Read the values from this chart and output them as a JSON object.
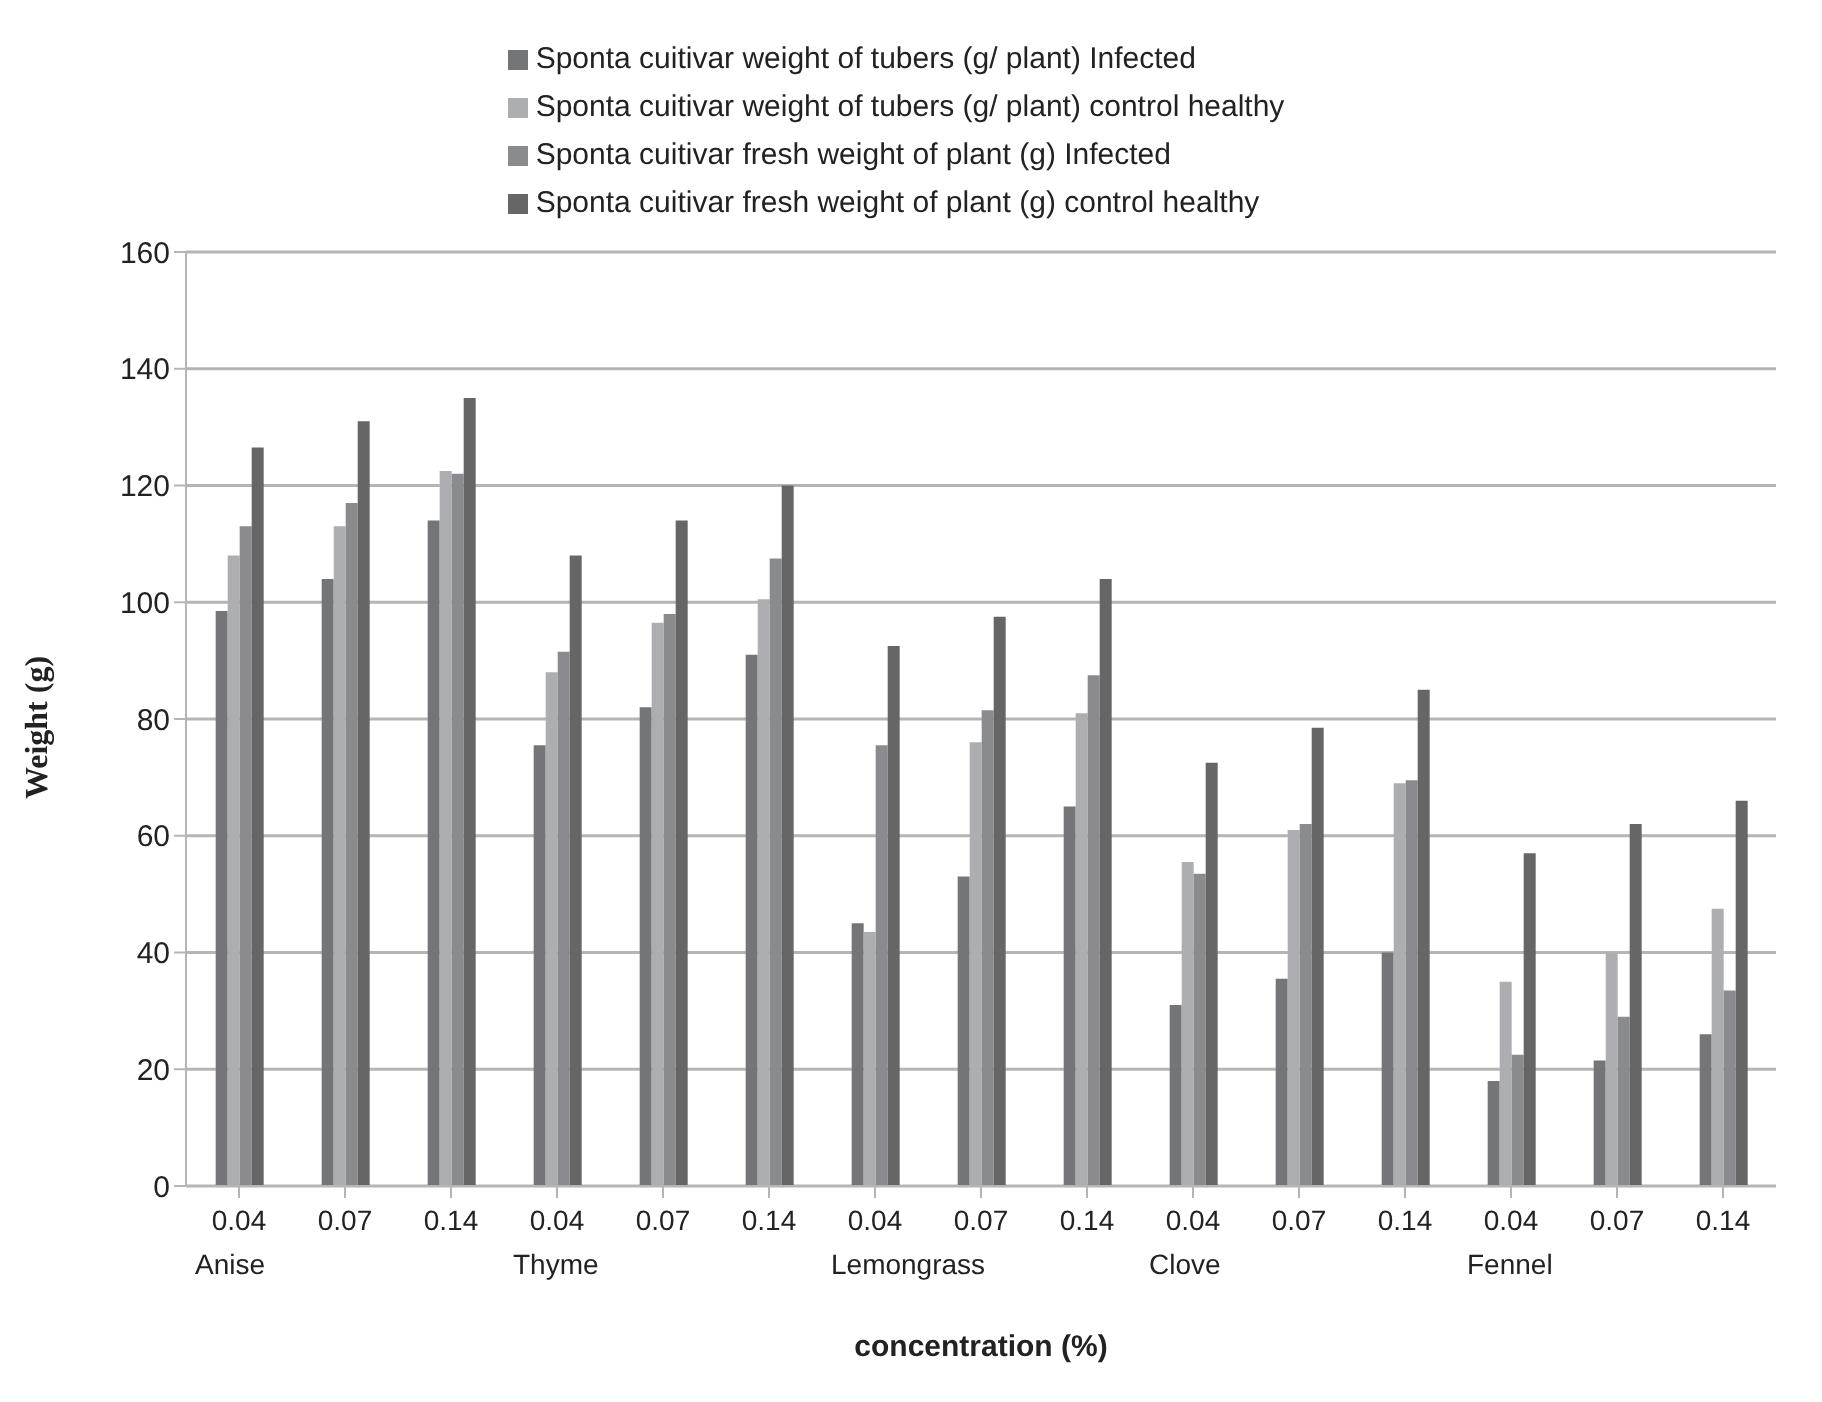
{
  "chart_data": {
    "type": "bar",
    "xlabel": "concentration (%)",
    "ylabel": "Weight (g)",
    "categories": [
      "0.04\nAnise",
      "0.07",
      "0.14",
      "0.04\nThyme",
      "0.07",
      "0.14",
      "0.04\nLemongrass",
      "0.07",
      "0.14",
      "0.04\nClove",
      "0.07",
      "0.14",
      "0.04\nFennel",
      "0.07",
      "0.14"
    ],
    "series": [
      {
        "name": "Sponta cuitivar weight of tubers (g/ plant) Infected",
        "color": "#747578",
        "values": [
          98.5,
          104,
          114,
          75.5,
          82,
          91,
          45,
          53,
          65,
          31,
          35.5,
          40,
          18,
          21.5,
          26
        ]
      },
      {
        "name": "Sponta cuitivar weight of tubers (g/ plant) control healthy",
        "color": "#adaeb1",
        "values": [
          108,
          113,
          122.5,
          88,
          96.5,
          100.5,
          43.5,
          76,
          81,
          55.5,
          61,
          69,
          35,
          40,
          47.5
        ]
      },
      {
        "name": "Sponta cuitivar fresh weight of plant (g) Infected",
        "color": "#8a8b8e",
        "values": [
          113,
          117,
          122,
          91.5,
          98,
          107.5,
          75.5,
          81.5,
          87.5,
          53.5,
          62,
          69.5,
          22.5,
          29,
          33.5
        ]
      },
      {
        "name": "Sponta cuitivar fresh weight of plant (g) control healthy",
        "color": "#666667",
        "values": [
          126.5,
          131,
          135,
          108,
          114,
          120,
          92.5,
          97.5,
          104,
          72.5,
          78.5,
          85,
          57,
          62,
          66
        ]
      }
    ],
    "ylim": [
      0,
      160
    ],
    "yticks": [
      0,
      20,
      40,
      60,
      80,
      100,
      120,
      140,
      160
    ],
    "grid": "y",
    "legend": "top"
  }
}
